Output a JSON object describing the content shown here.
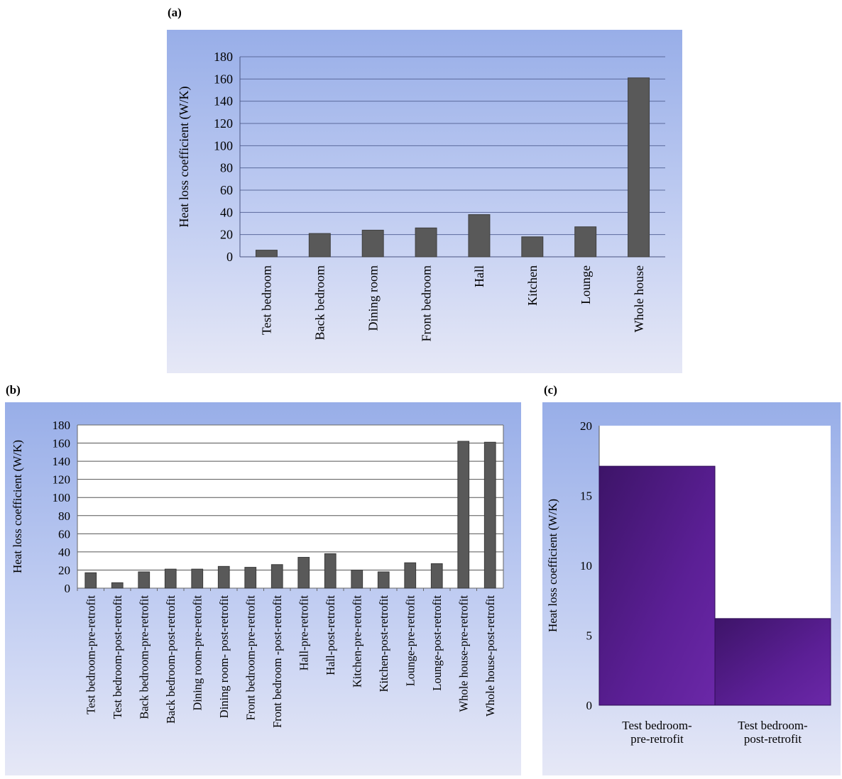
{
  "panels": {
    "a": {
      "label": "(a)"
    },
    "b": {
      "label": "(b)"
    },
    "c": {
      "label": "(c)"
    }
  },
  "chart_data": [
    {
      "panel": "(a)",
      "type": "bar",
      "ylabel": "Heat loss coefficient (W/K)",
      "ylim": [
        0,
        180
      ],
      "yticks": [
        0,
        20,
        40,
        60,
        80,
        100,
        120,
        140,
        160,
        180
      ],
      "categories": [
        "Test bedroom",
        "Back bedroom",
        "Dining room",
        "Front bedroom",
        "Hall",
        "Kitchen",
        "Lounge",
        "Whole house"
      ],
      "values": [
        6,
        21,
        24,
        26,
        38,
        18,
        27,
        161
      ],
      "bar_color": "#595959",
      "grid": true
    },
    {
      "panel": "(b)",
      "type": "bar",
      "ylabel": "Heat loss coefficient (W/K)",
      "ylim": [
        0,
        180
      ],
      "yticks": [
        0,
        20,
        40,
        60,
        80,
        100,
        120,
        140,
        160,
        180
      ],
      "categories": [
        "Test bedroom-pre-retrofit",
        "Test bedroom-post-retrofit",
        "Back bedroom-pre-retrofit",
        "Back bedroom-post-retrofit",
        "Dining room-pre-retrofit",
        "Dining room- post-retrofit",
        "Front bedroom-pre-retrofit",
        "Front bedroom -post-retrofit",
        "Hall-pre-retrofit",
        "Hall-post-retrofit",
        "Kitchen-pre-retrofit",
        "Kitchen-post-retrofit",
        "Lounge-pre-retrofit",
        "Lounge-post-retrofit",
        "Whole house-pre-retrofit",
        "Whole house-post-retrofit"
      ],
      "values": [
        17,
        6,
        18,
        21,
        21,
        24,
        23,
        26,
        34,
        38,
        20,
        18,
        28,
        27,
        162,
        161
      ],
      "bar_color": "#595959",
      "grid": true
    },
    {
      "panel": "(c)",
      "type": "bar",
      "ylabel": "Heat loss coefficient (W/K)",
      "ylim": [
        0,
        20
      ],
      "yticks": [
        0,
        5,
        10,
        15,
        20
      ],
      "categories": [
        [
          "Test bedroom-",
          "pre-retrofit"
        ],
        [
          "Test bedroom-",
          "post-retrofit"
        ]
      ],
      "values": [
        17.1,
        6.2
      ],
      "bar_color": "#5b1f95",
      "grid": false
    }
  ]
}
